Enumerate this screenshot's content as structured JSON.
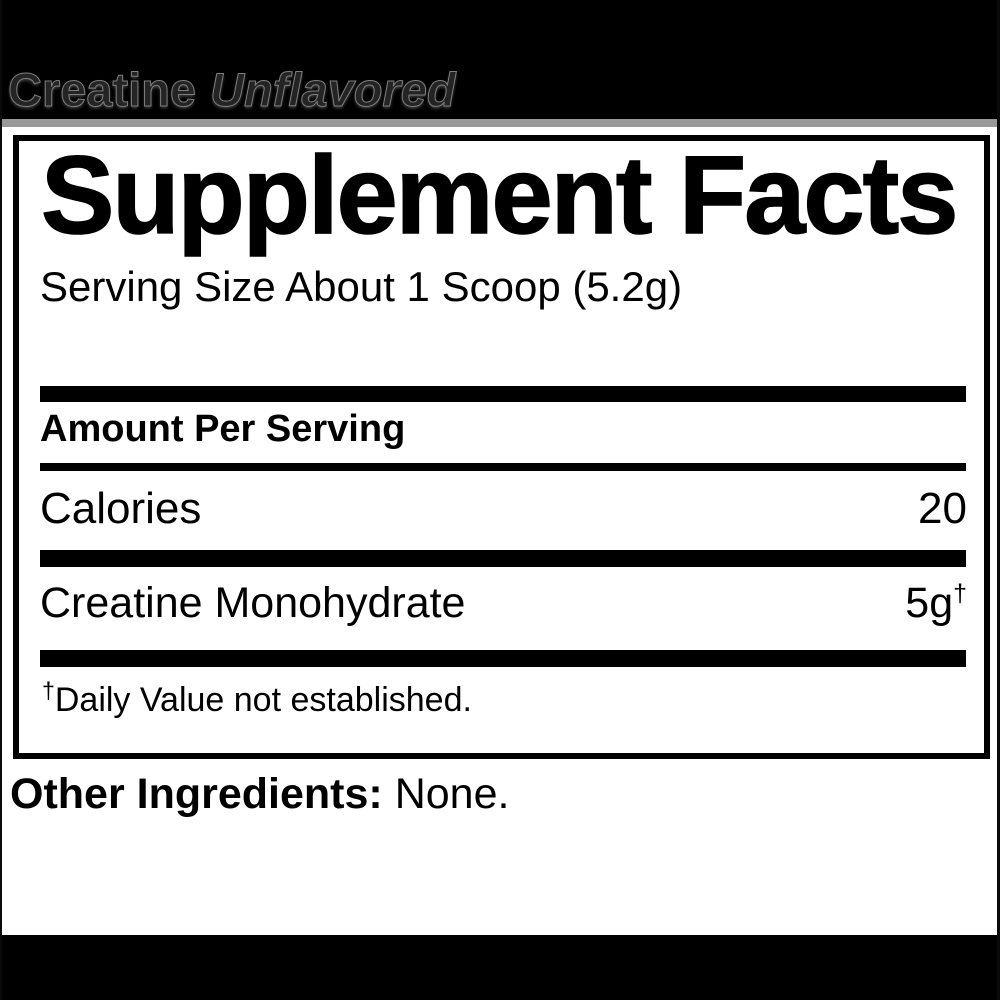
{
  "product": {
    "name": "Creatine",
    "flavor": "Unflavored"
  },
  "supplement_facts": {
    "title": "Supplement Facts",
    "serving_size": "Serving Size About 1 Scoop (5.2g)",
    "section_heading": "Amount Per Serving",
    "nutrients": [
      {
        "name": "Calories",
        "value": "20",
        "suffix": ""
      },
      {
        "name": "Creatine Monohydrate",
        "value": "5g",
        "suffix": "†"
      }
    ],
    "footnote": {
      "symbol": "†",
      "text": "Daily Value not established."
    }
  },
  "other_ingredients": {
    "label": "Other Ingredients:",
    "value": "None."
  },
  "colors": {
    "banner": "#000000",
    "divider": "#999999",
    "box_border": "#000000",
    "text": "#000000"
  }
}
